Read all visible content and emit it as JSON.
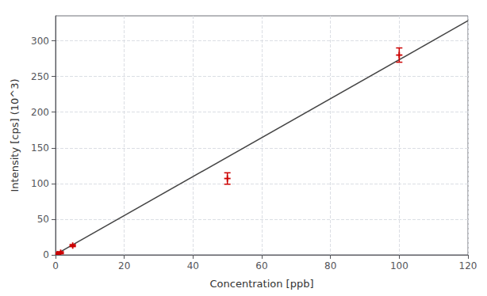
{
  "chart_data": {
    "type": "scatter",
    "xlabel": "Concentration [ppb]",
    "ylabel": "Intensity [cps] (10^3)",
    "xlim": [
      0,
      120
    ],
    "ylim": [
      0,
      335
    ],
    "xticks": [
      0,
      20,
      40,
      60,
      80,
      100,
      120
    ],
    "yticks": [
      0,
      50,
      100,
      150,
      200,
      250,
      300
    ],
    "grid": true,
    "series": [
      {
        "type": "line",
        "color": "#444444",
        "line_style": "solid",
        "x": [
          0,
          120
        ],
        "values": [
          0.5,
          328.1
        ]
      },
      {
        "type": "scatter",
        "color": "#cc0000",
        "marker": "+",
        "x": [
          0.5,
          1.5,
          5,
          50,
          100
        ],
        "values": [
          1,
          3,
          13,
          107,
          280
        ],
        "yerr": [
          2,
          1.5,
          1.5,
          8,
          10
        ]
      }
    ]
  }
}
